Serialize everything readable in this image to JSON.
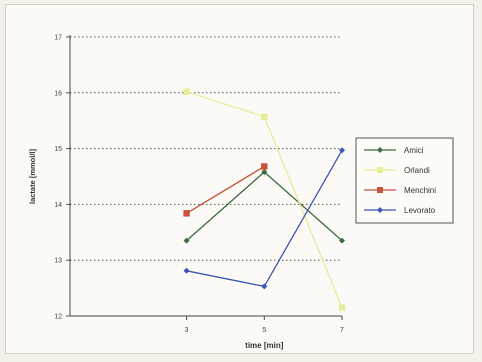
{
  "chart_data": {
    "type": "line",
    "title": "",
    "xlabel": "time [min]",
    "ylabel": "lactate [mmol/l]",
    "x": [
      3,
      5,
      7
    ],
    "xlim": [
      0,
      7
    ],
    "ylim": [
      12,
      17
    ],
    "x_ticks": [
      "3",
      "5",
      "7"
    ],
    "y_ticks": [
      "12",
      "13",
      "14",
      "15",
      "16",
      "17"
    ],
    "grid": "horizontal dotted",
    "legend_position": "right",
    "series": [
      {
        "name": "Amici",
        "values": [
          13.35,
          14.58,
          13.35
        ],
        "color": "#3e6b3f",
        "marker": "diamond"
      },
      {
        "name": "Orlandi",
        "values": [
          16.02,
          15.57,
          12.15
        ],
        "color": "#e9ec9a",
        "marker": "square"
      },
      {
        "name": "Menchini",
        "values": [
          13.84,
          14.68,
          null
        ],
        "color": "#c8523a",
        "marker": "square"
      },
      {
        "name": "Levorato",
        "values": [
          12.81,
          12.53,
          14.97
        ],
        "color": "#3d55b3",
        "marker": "diamond"
      }
    ]
  }
}
